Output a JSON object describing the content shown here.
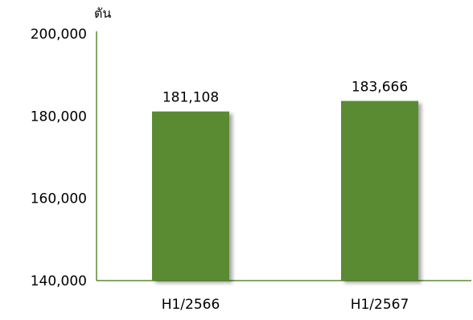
{
  "chart_data": {
    "type": "bar",
    "title": "",
    "xlabel": "",
    "ylabel": "ตัน",
    "categories": [
      "H1/2566",
      "H1/2567"
    ],
    "values": [
      181108,
      183666
    ],
    "data_labels": [
      "181,108",
      "183,666"
    ],
    "ylim": [
      140000,
      200000
    ],
    "yticks": [
      140000,
      160000,
      180000,
      200000
    ],
    "ytick_labels": [
      "140,000",
      "160,000",
      "180,000",
      "200,000"
    ],
    "grid": false,
    "legend": "none",
    "colors": {
      "bar": "#5a8a32",
      "axis": "#5a8a32"
    }
  }
}
